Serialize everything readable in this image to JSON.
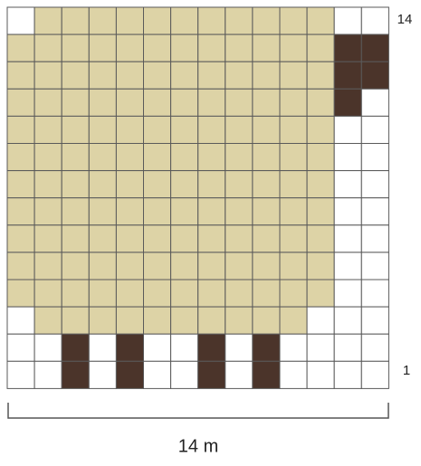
{
  "row_labels": {
    "top": "14",
    "bottom": "1"
  },
  "width_label": "14 m"
}
